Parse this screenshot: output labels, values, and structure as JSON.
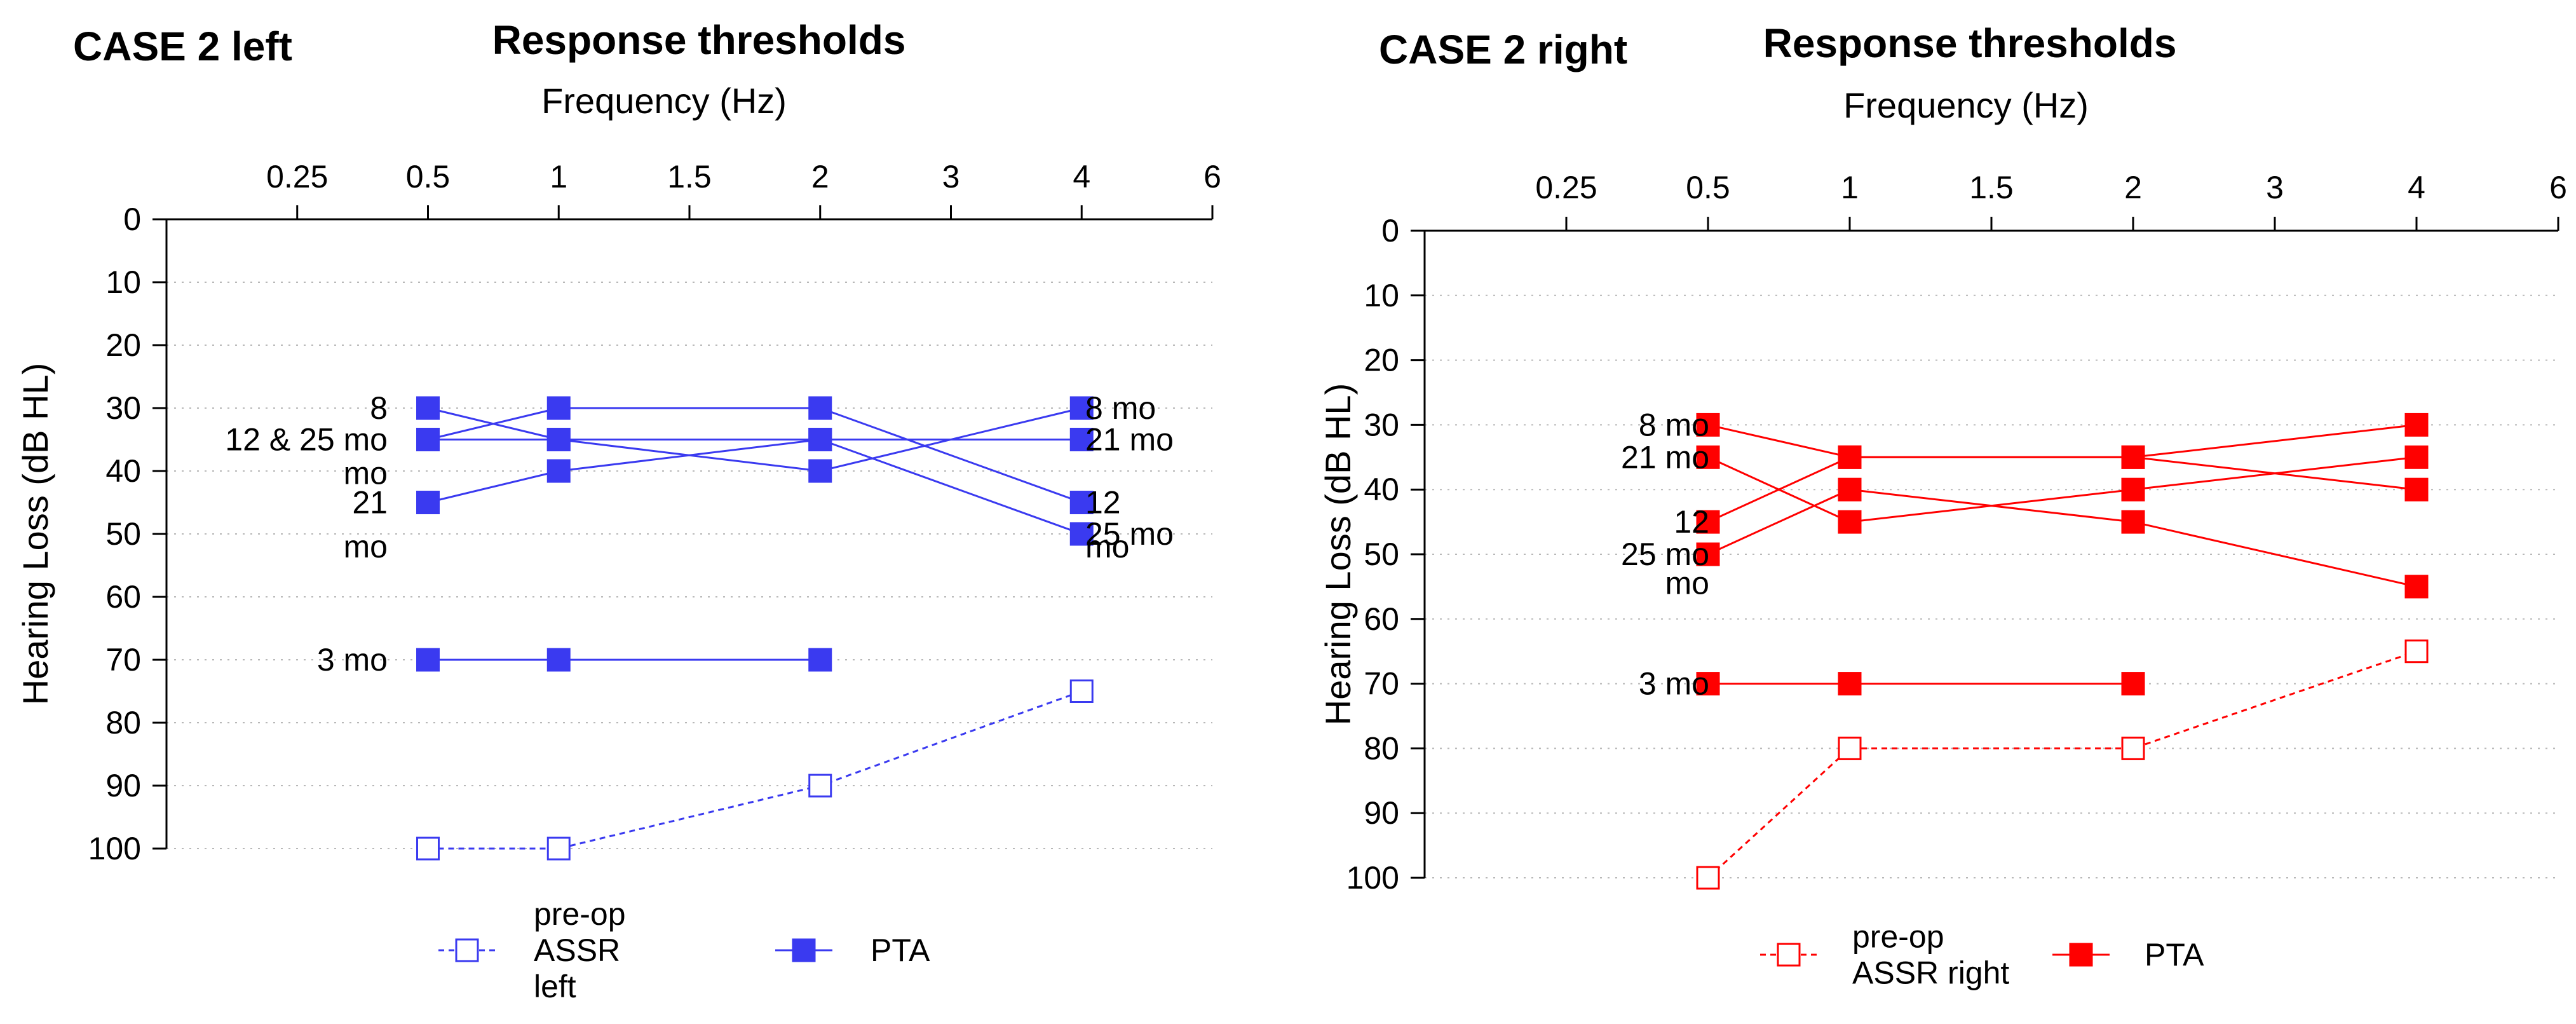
{
  "chart_data": [
    {
      "type": "line",
      "case_title": "CASE 2 left",
      "title": "Response thresholds",
      "xlabel": "Frequency (Hz)",
      "ylabel": "Hearing Loss (dB HL)",
      "x_categories": [
        "0.25",
        "0.5",
        "1",
        "1.5",
        "2",
        "3",
        "4",
        "6"
      ],
      "y_ticks": [
        "0",
        "10",
        "20",
        "30",
        "40",
        "50",
        "60",
        "70",
        "80",
        "90",
        "100"
      ],
      "ylim": [
        0,
        100
      ],
      "y_inverted": true,
      "grid": "horizontal dotted",
      "color": "#3a3af0",
      "series": [
        {
          "name": "pre-op ASSR left",
          "style": "dashed-open",
          "x": [
            "0.5",
            "1",
            "2",
            "4"
          ],
          "values": [
            100,
            100,
            90,
            75
          ]
        },
        {
          "name": "PTA 3 mo",
          "style": "solid-filled",
          "x": [
            "0.5",
            "1",
            "2"
          ],
          "values": [
            70,
            70,
            70
          ]
        },
        {
          "name": "PTA 8 mo",
          "style": "solid-filled",
          "x": [
            "0.5",
            "1",
            "2",
            "4"
          ],
          "values": [
            30,
            35,
            40,
            30
          ]
        },
        {
          "name": "PTA 12 mo",
          "style": "solid-filled",
          "x": [
            "0.5",
            "1",
            "2",
            "4"
          ],
          "values": [
            35,
            30,
            30,
            45
          ]
        },
        {
          "name": "PTA 21 mo",
          "style": "solid-filled",
          "x": [
            "0.5",
            "1",
            "2",
            "4"
          ],
          "values": [
            45,
            40,
            35,
            35
          ]
        },
        {
          "name": "PTA 25 mo",
          "style": "solid-filled",
          "x": [
            "0.5",
            "1",
            "2",
            "4"
          ],
          "values": [
            35,
            35,
            35,
            50
          ]
        }
      ],
      "annotations": {
        "left": [
          {
            "lines": [
              "8"
            ],
            "y": 30
          },
          {
            "lines": [
              "12 & 25 mo"
            ],
            "y": 35
          },
          {
            "lines": [
              "mo"
            ],
            "y": 37
          },
          {
            "lines": [
              "21"
            ],
            "y": 45
          },
          {
            "lines": [
              "mo"
            ],
            "y": 52
          },
          {
            "lines": [
              "3 mo"
            ],
            "y": 70
          }
        ],
        "right": [
          {
            "lines": [
              "8 mo"
            ],
            "y": 30
          },
          {
            "lines": [
              "21 mo"
            ],
            "y": 35
          },
          {
            "lines": [
              "12"
            ],
            "y": 45
          },
          {
            "lines": [
              "25 mo"
            ],
            "y": 50
          },
          {
            "lines": [
              "mo"
            ],
            "y": 52
          }
        ]
      },
      "legend": [
        {
          "label_lines": [
            "pre-op",
            "ASSR",
            "left"
          ],
          "style": "dashed-open"
        },
        {
          "label_lines": [
            "PTA"
          ],
          "style": "solid-filled"
        }
      ]
    },
    {
      "type": "line",
      "case_title": "CASE 2 right",
      "title": "Response thresholds",
      "xlabel": "Frequency (Hz)",
      "ylabel": "Hearing Loss (dB HL)",
      "x_categories": [
        "0.25",
        "0.5",
        "1",
        "1.5",
        "2",
        "3",
        "4",
        "6"
      ],
      "y_ticks": [
        "0",
        "10",
        "20",
        "30",
        "40",
        "50",
        "60",
        "70",
        "80",
        "90",
        "100"
      ],
      "ylim": [
        0,
        100
      ],
      "y_inverted": true,
      "grid": "horizontal dotted",
      "color": "#ff0000",
      "series": [
        {
          "name": "pre-op ASSR right",
          "style": "dashed-open",
          "x": [
            "0.5",
            "1",
            "2",
            "4"
          ],
          "values": [
            100,
            80,
            80,
            65
          ]
        },
        {
          "name": "PTA 3 mo",
          "style": "solid-filled",
          "x": [
            "0.5",
            "1",
            "2"
          ],
          "values": [
            70,
            70,
            70
          ]
        },
        {
          "name": "PTA 8 mo",
          "style": "solid-filled",
          "x": [
            "0.5",
            "1",
            "2",
            "4"
          ],
          "values": [
            30,
            35,
            35,
            40
          ]
        },
        {
          "name": "PTA 21 mo",
          "style": "solid-filled",
          "x": [
            "0.5",
            "1",
            "2",
            "4"
          ],
          "values": [
            35,
            45,
            40,
            35
          ]
        },
        {
          "name": "PTA 12 mo",
          "style": "solid-filled",
          "x": [
            "0.5",
            "1",
            "2",
            "4"
          ],
          "values": [
            45,
            35,
            35,
            30
          ]
        },
        {
          "name": "PTA 25 mo",
          "style": "solid-filled",
          "x": [
            "0.5",
            "1",
            "2",
            "4"
          ],
          "values": [
            50,
            40,
            45,
            55
          ]
        }
      ],
      "annotations": {
        "left": [
          {
            "lines": [
              "8 mo"
            ],
            "y": 30
          },
          {
            "lines": [
              "21 mo"
            ],
            "y": 35
          },
          {
            "lines": [
              "12"
            ],
            "y": 45
          },
          {
            "lines": [
              "25 mo"
            ],
            "y": 50
          },
          {
            "lines": [
              "mo"
            ],
            "y": 52
          },
          {
            "lines": [
              "3 mo"
            ],
            "y": 70
          }
        ],
        "right": []
      },
      "legend": [
        {
          "label_lines": [
            "pre-op",
            "ASSR right"
          ],
          "style": "dashed-open"
        },
        {
          "label_lines": [
            "PTA"
          ],
          "style": "solid-filled"
        }
      ]
    }
  ]
}
